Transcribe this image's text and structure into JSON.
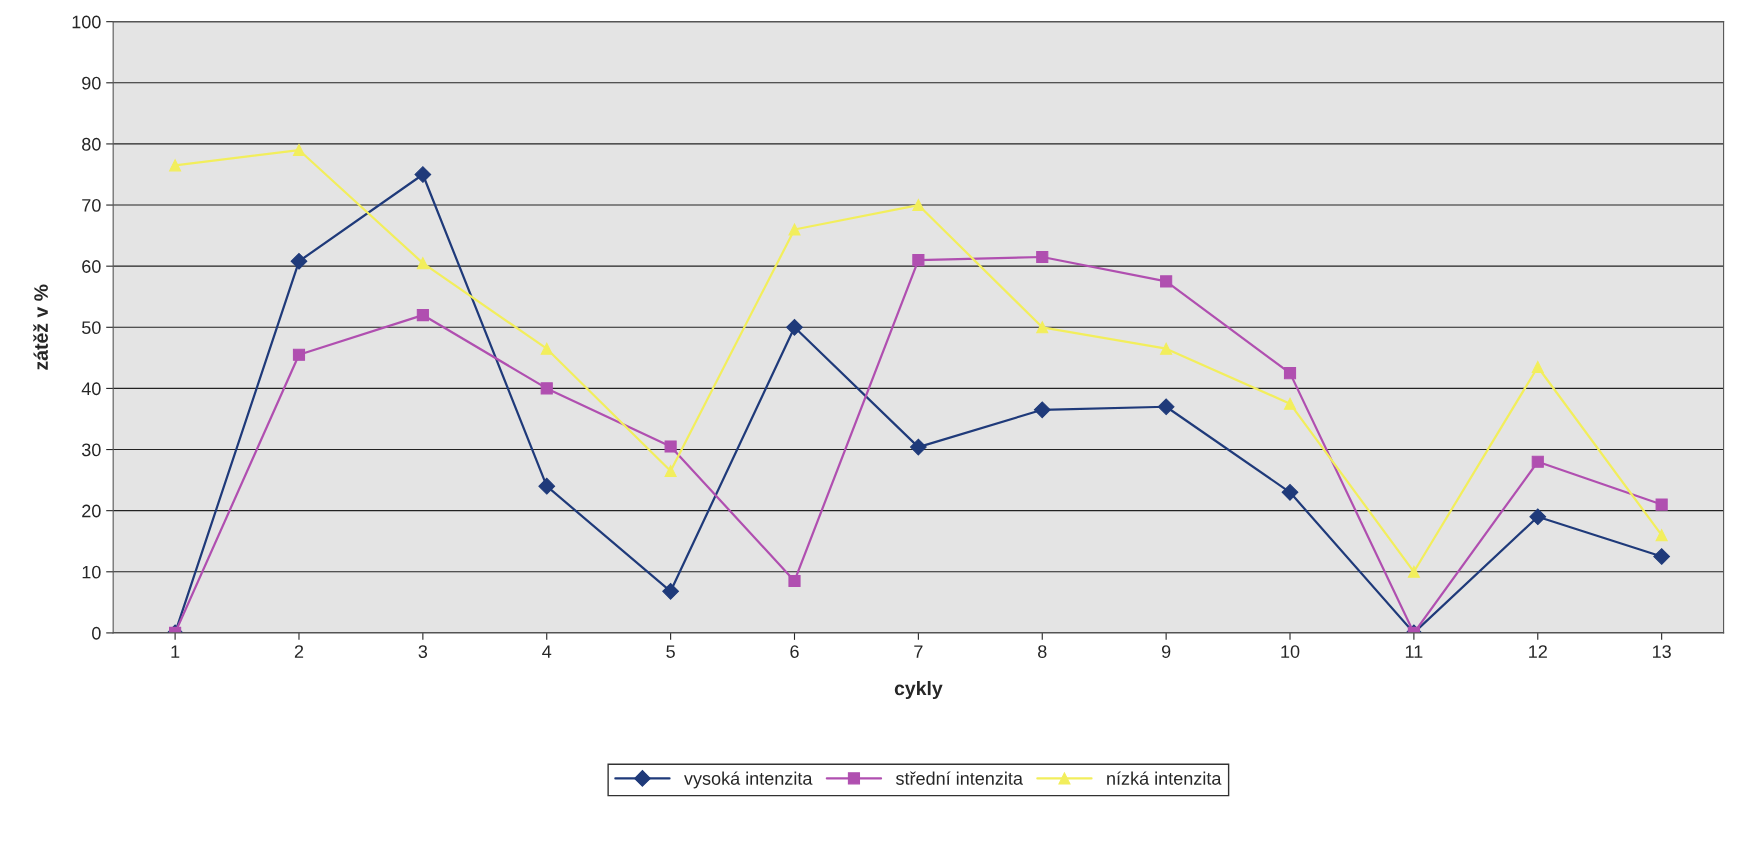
{
  "chart_data": {
    "type": "line",
    "xlabel": "cykly",
    "ylabel": "zátěž v %",
    "categories": [
      "1",
      "2",
      "3",
      "4",
      "5",
      "6",
      "7",
      "8",
      "9",
      "10",
      "11",
      "12",
      "13"
    ],
    "ylim": [
      0,
      100
    ],
    "yticks": [
      0,
      10,
      20,
      30,
      40,
      50,
      60,
      70,
      80,
      90,
      100
    ],
    "grid": "y",
    "legend": "bottom",
    "series": [
      {
        "name": "vysoká intenzita",
        "color": "#1f3a7a",
        "marker": "diamond",
        "values": [
          0,
          60.8,
          75,
          24,
          6.8,
          50,
          30.4,
          36.5,
          37,
          23,
          0,
          19,
          12.5
        ]
      },
      {
        "name": "střední intenzita",
        "color": "#b04fb0",
        "marker": "square",
        "values": [
          0,
          45.5,
          52,
          40,
          30.5,
          8.5,
          61,
          61.5,
          57.5,
          42.5,
          0,
          28,
          21
        ]
      },
      {
        "name": "nízká intenzita",
        "color": "#f2ee5c",
        "marker": "triangle",
        "values": [
          76.5,
          79,
          60.5,
          46.5,
          26.5,
          66,
          70,
          50,
          46.5,
          37.5,
          10,
          43.5,
          16
        ]
      }
    ]
  }
}
